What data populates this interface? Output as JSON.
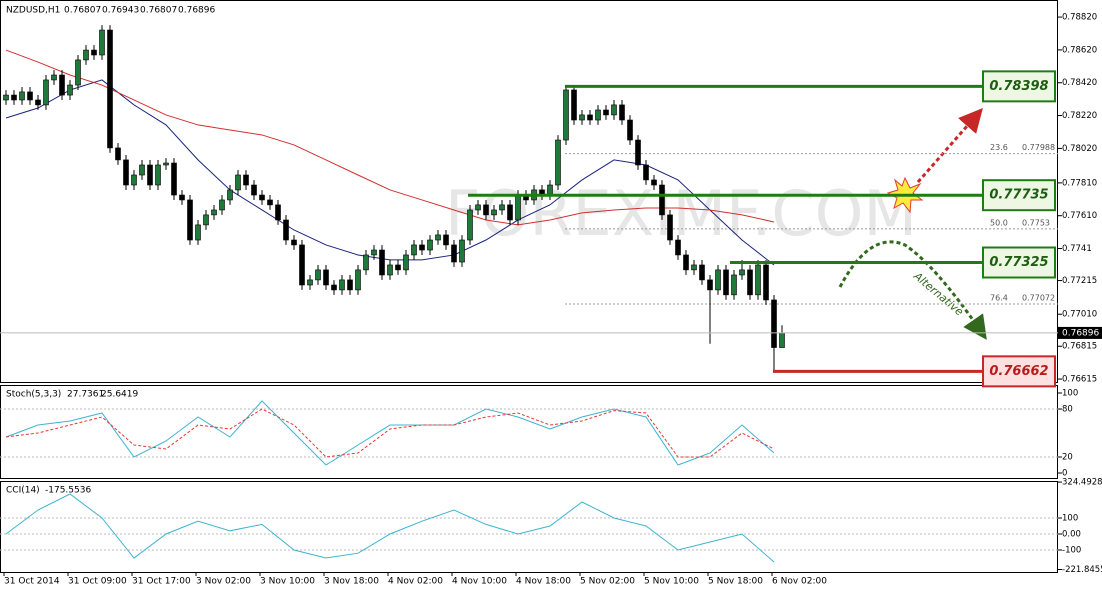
{
  "header": {
    "symbol": "NZDUSD,H1",
    "ohlc": [
      0.76807,
      0.76943,
      0.76807,
      0.76896
    ]
  },
  "watermark": "FOREXIMF.COM",
  "annotation": "Alternative",
  "chart_data": [
    {
      "type": "candlestick",
      "up_color": "#1f7a3a",
      "down_color": "#000000",
      "candles": [
        [
          0.78315,
          0.78375,
          0.78285,
          0.78345
        ],
        [
          0.78345,
          0.78375,
          0.78285,
          0.78315
        ],
        [
          0.78315,
          0.78394,
          0.78285,
          0.78364
        ],
        [
          0.78364,
          0.78394,
          0.78285,
          0.78315
        ],
        [
          0.78315,
          0.78345,
          0.78255,
          0.78285
        ],
        [
          0.78285,
          0.78467,
          0.78255,
          0.78437
        ],
        [
          0.78437,
          0.78497,
          0.78407,
          0.78467
        ],
        [
          0.78467,
          0.78497,
          0.78315,
          0.78345
        ],
        [
          0.78345,
          0.78436,
          0.78315,
          0.78406
        ],
        [
          0.78406,
          0.78589,
          0.78376,
          0.78559
        ],
        [
          0.78559,
          0.78649,
          0.78529,
          0.78619
        ],
        [
          0.78619,
          0.78649,
          0.78559,
          0.78589
        ],
        [
          0.78589,
          0.78771,
          0.78559,
          0.78741
        ],
        [
          0.78741,
          0.78771,
          0.77993,
          0.78023
        ],
        [
          0.78023,
          0.78053,
          0.7792,
          0.7795
        ],
        [
          0.7795,
          0.7798,
          0.77767,
          0.77797
        ],
        [
          0.77797,
          0.77888,
          0.77767,
          0.77858
        ],
        [
          0.77858,
          0.77949,
          0.77828,
          0.77919
        ],
        [
          0.77919,
          0.77949,
          0.77767,
          0.77797
        ],
        [
          0.77797,
          0.77949,
          0.77767,
          0.77919
        ],
        [
          0.77919,
          0.77961,
          0.77889,
          0.77931
        ],
        [
          0.77931,
          0.77961,
          0.77706,
          0.77736
        ],
        [
          0.77736,
          0.77766,
          0.77676,
          0.77706
        ],
        [
          0.77706,
          0.77736,
          0.77432,
          0.77462
        ],
        [
          0.77462,
          0.77584,
          0.77432,
          0.77554
        ],
        [
          0.77554,
          0.77645,
          0.77524,
          0.77615
        ],
        [
          0.77615,
          0.77675,
          0.77585,
          0.77645
        ],
        [
          0.77645,
          0.77736,
          0.77615,
          0.77706
        ],
        [
          0.77706,
          0.77797,
          0.77676,
          0.77767
        ],
        [
          0.77767,
          0.77888,
          0.77737,
          0.77858
        ],
        [
          0.77858,
          0.77888,
          0.77767,
          0.77797
        ],
        [
          0.77797,
          0.77827,
          0.77706,
          0.77736
        ],
        [
          0.77736,
          0.77766,
          0.77676,
          0.77706
        ],
        [
          0.77706,
          0.77736,
          0.77646,
          0.77676
        ],
        [
          0.77676,
          0.77706,
          0.77554,
          0.77584
        ],
        [
          0.77584,
          0.77614,
          0.77432,
          0.77462
        ],
        [
          0.77462,
          0.77492,
          0.77402,
          0.77432
        ],
        [
          0.77432,
          0.77462,
          0.77158,
          0.77188
        ],
        [
          0.77188,
          0.77249,
          0.77158,
          0.77219
        ],
        [
          0.77219,
          0.7731,
          0.77189,
          0.7728
        ],
        [
          0.7728,
          0.7731,
          0.77158,
          0.77188
        ],
        [
          0.77188,
          0.77218,
          0.77128,
          0.77158
        ],
        [
          0.77158,
          0.77249,
          0.77128,
          0.77219
        ],
        [
          0.77219,
          0.77249,
          0.77128,
          0.77158
        ],
        [
          0.77158,
          0.7731,
          0.77128,
          0.7728
        ],
        [
          0.7728,
          0.77401,
          0.7725,
          0.77371
        ],
        [
          0.77371,
          0.77431,
          0.77341,
          0.77401
        ],
        [
          0.77401,
          0.77431,
          0.77219,
          0.77249
        ],
        [
          0.77249,
          0.7734,
          0.77219,
          0.7731
        ],
        [
          0.7731,
          0.7734,
          0.7725,
          0.7728
        ],
        [
          0.7728,
          0.77401,
          0.7725,
          0.77371
        ],
        [
          0.77371,
          0.77462,
          0.77341,
          0.77432
        ],
        [
          0.77432,
          0.77462,
          0.77371,
          0.77401
        ],
        [
          0.77401,
          0.77492,
          0.77371,
          0.77462
        ],
        [
          0.77462,
          0.77523,
          0.77432,
          0.77493
        ],
        [
          0.77493,
          0.77523,
          0.77402,
          0.77432
        ],
        [
          0.77432,
          0.77462,
          0.77298,
          0.77328
        ],
        [
          0.77328,
          0.77492,
          0.77298,
          0.77462
        ],
        [
          0.77462,
          0.77675,
          0.77432,
          0.77645
        ],
        [
          0.77645,
          0.77706,
          0.77615,
          0.77676
        ],
        [
          0.77676,
          0.77706,
          0.77585,
          0.77615
        ],
        [
          0.77615,
          0.77675,
          0.77585,
          0.77645
        ],
        [
          0.77645,
          0.77706,
          0.77615,
          0.77676
        ],
        [
          0.77676,
          0.77706,
          0.77554,
          0.77584
        ],
        [
          0.77584,
          0.77766,
          0.77554,
          0.77736
        ],
        [
          0.77736,
          0.77766,
          0.77676,
          0.77706
        ],
        [
          0.77706,
          0.77797,
          0.77676,
          0.77767
        ],
        [
          0.77767,
          0.77797,
          0.77706,
          0.77736
        ],
        [
          0.77736,
          0.77827,
          0.77706,
          0.77797
        ],
        [
          0.77797,
          0.78101,
          0.77767,
          0.78071
        ],
        [
          0.78071,
          0.78398,
          0.78041,
          0.78376
        ],
        [
          0.78376,
          0.7839,
          0.78163,
          0.78193
        ],
        [
          0.78193,
          0.78254,
          0.78163,
          0.78224
        ],
        [
          0.78224,
          0.78254,
          0.78163,
          0.78193
        ],
        [
          0.78193,
          0.78284,
          0.78163,
          0.78254
        ],
        [
          0.78254,
          0.78284,
          0.78194,
          0.78224
        ],
        [
          0.78224,
          0.78315,
          0.78194,
          0.78285
        ],
        [
          0.78285,
          0.78315,
          0.78163,
          0.78193
        ],
        [
          0.78193,
          0.78223,
          0.78041,
          0.78071
        ],
        [
          0.78071,
          0.78101,
          0.77889,
          0.77919
        ],
        [
          0.77919,
          0.77949,
          0.77798,
          0.77828
        ],
        [
          0.77828,
          0.77858,
          0.77767,
          0.77797
        ],
        [
          0.77797,
          0.77827,
          0.77585,
          0.77615
        ],
        [
          0.77615,
          0.77645,
          0.77432,
          0.77462
        ],
        [
          0.77462,
          0.77492,
          0.77341,
          0.77371
        ],
        [
          0.77371,
          0.77401,
          0.7725,
          0.7728
        ],
        [
          0.7728,
          0.7734,
          0.7725,
          0.7731
        ],
        [
          0.7731,
          0.7734,
          0.77189,
          0.77219
        ],
        [
          0.77219,
          0.77249,
          0.7683,
          0.77158
        ],
        [
          0.77158,
          0.7731,
          0.77128,
          0.7728
        ],
        [
          0.7728,
          0.7731,
          0.77098,
          0.77128
        ],
        [
          0.77128,
          0.77279,
          0.77098,
          0.77249
        ],
        [
          0.77249,
          0.7734,
          0.77219,
          0.7728
        ],
        [
          0.7728,
          0.7731,
          0.77098,
          0.77128
        ],
        [
          0.77128,
          0.7734,
          0.77098,
          0.7731
        ],
        [
          0.7731,
          0.7734,
          0.77067,
          0.77097
        ],
        [
          0.77097,
          0.77127,
          0.76662,
          0.76807
        ],
        [
          0.76807,
          0.76943,
          0.76807,
          0.76896
        ]
      ],
      "series": [
        {
          "color": "#1a237e",
          "values": [
            0.78205,
            0.78266,
            0.78376,
            0.78437,
            0.78285,
            0.78163,
            0.7795,
            0.77767,
            0.77645,
            0.77523,
            0.77432,
            0.77371,
            0.77341,
            0.77341,
            0.77371,
            0.77462,
            0.77584,
            0.77676,
            0.77828,
            0.7795,
            0.77919,
            0.77828,
            0.77645,
            0.77462,
            0.7731
          ]
        },
        {
          "color": "#d32f2f",
          "values": [
            0.78619,
            0.78546,
            0.78467,
            0.78406,
            0.78315,
            0.78224,
            0.78163,
            0.78132,
            0.78102,
            0.78041,
            0.7795,
            0.77858,
            0.77767,
            0.77706,
            0.77645,
            0.77584,
            0.77554,
            0.77584,
            0.77627,
            0.77645,
            0.77657,
            0.77657,
            0.77645,
            0.77615,
            0.77572
          ]
        }
      ],
      "levels": [
        {
          "value": 0.78398,
          "color": "#1e7d12"
        },
        {
          "value": 0.77735,
          "color": "#1e7d12"
        },
        {
          "value": 0.77325,
          "color": "#1e7d12"
        },
        {
          "value": 0.76662,
          "color": "#c62828"
        }
      ],
      "fib": [
        {
          "label": "23.6",
          "value": 0.77988
        },
        {
          "label": "50.0",
          "value": 0.7753
        },
        {
          "label": "76.4",
          "value": 0.77072
        }
      ],
      "last_price": 0.76896,
      "ylim": [
        0.76591,
        0.78924
      ],
      "yticks": [
        {
          "value": 0.7882,
          "label": "0.78820"
        },
        {
          "value": 0.7862,
          "label": "0.78620"
        },
        {
          "value": 0.7842,
          "label": "0.78420"
        },
        {
          "value": 0.7822,
          "label": "0.78220"
        },
        {
          "value": 0.7802,
          "label": "0.78020"
        },
        {
          "value": 0.7781,
          "label": "0.77810"
        },
        {
          "value": 0.7761,
          "label": "0.77610"
        },
        0.7741,
        0.77215,
        {
          "value": 0.7701,
          "label": "0.77010"
        },
        0.76815,
        0.76615
      ],
      "x_labels": [
        "31 Oct 2014",
        "31 Oct 09:00",
        "31 Oct 17:00",
        "3 Nov 02:00",
        "3 Nov 10:00",
        "3 Nov 18:00",
        "4 Nov 02:00",
        "4 Nov 10:00",
        "4 Nov 18:00",
        "5 Nov 02:00",
        "5 Nov 10:00",
        "5 Nov 18:00",
        "6 Nov 02:00"
      ]
    },
    {
      "type": "line",
      "title": "Stoch(5,3,3)",
      "readings": [
        27.7361,
        25.6419
      ],
      "series": [
        {
          "color": "#3cb4d0",
          "values": [
            45,
            60,
            65,
            75,
            20,
            40,
            70,
            45,
            90,
            50,
            10,
            35,
            60,
            60,
            60,
            80,
            70,
            55,
            70,
            80,
            70,
            10,
            25,
            60,
            25
          ]
        },
        {
          "color": "#e53935",
          "dashed": true,
          "values": [
            45,
            50,
            60,
            70,
            35,
            30,
            60,
            55,
            80,
            60,
            20,
            25,
            55,
            60,
            60,
            70,
            75,
            60,
            65,
            78,
            75,
            20,
            20,
            50,
            30
          ]
        }
      ],
      "ylim": [
        -6.25,
        108.75
      ],
      "yticks": [
        0,
        20,
        80,
        100
      ],
      "levels": [
        20,
        80
      ]
    },
    {
      "type": "line",
      "title": "CCI(14)",
      "readings": [
        -175.5536
      ],
      "series": [
        {
          "color": "#3cb4d0",
          "values": [
            0,
            150,
            250,
            100,
            -150,
            0,
            80,
            20,
            60,
            -100,
            -150,
            -120,
            0,
            80,
            150,
            60,
            0,
            50,
            200,
            100,
            50,
            -100,
            -50,
            0,
            -175
          ]
        }
      ],
      "ylim": [
        -237.5,
        325
      ],
      "yticks": [
        324.4928,
        100,
        {
          "value": 0,
          "label": "0.00"
        },
        -100,
        -221.8455
      ],
      "levels": [
        100,
        0,
        -100
      ]
    }
  ]
}
